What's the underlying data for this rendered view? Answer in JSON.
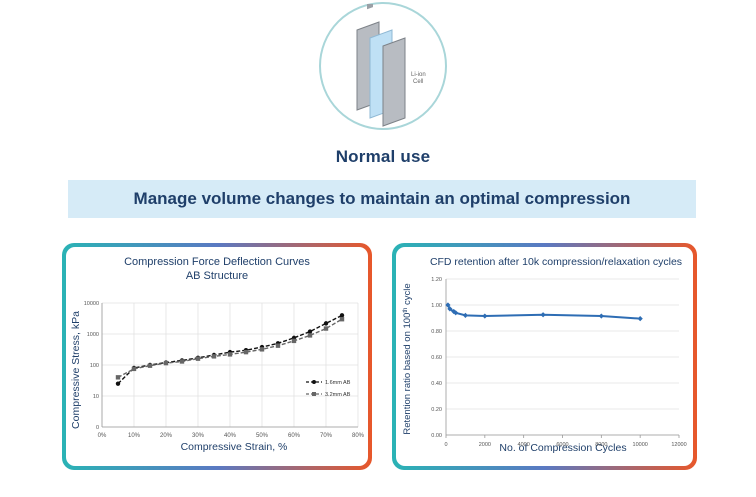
{
  "hero": {
    "cell_label_line1": "Li-ion",
    "cell_label_line2": "Cell",
    "caption": "Normal use",
    "outline_color": "#a9d6d9",
    "cell_color": "#b8bcc2",
    "separator_color": "#bfe0f5"
  },
  "banner": {
    "text": "Manage volume changes to maintain an optimal compression",
    "background": "#d6ebf7",
    "text_color": "#1f3f6a"
  },
  "panel_border_gradient": [
    "#2ab3b5",
    "#5a79c2",
    "#e8572a"
  ],
  "chart_data": [
    {
      "type": "line",
      "title": "Compression Force Deflection Curves",
      "subtitle": "AB Structure",
      "xlabel": "Compressive Strain, %",
      "ylabel": "Compressive Stress, kPa",
      "x_ticks": [
        "0%",
        "10%",
        "20%",
        "30%",
        "40%",
        "50%",
        "60%",
        "70%",
        "80%"
      ],
      "y_ticks": [
        "0",
        "10",
        "100",
        "1000",
        "10000"
      ],
      "xlim": [
        0,
        80
      ],
      "y_scale": "log",
      "grid": true,
      "legend_position": "right",
      "series": [
        {
          "name": "1.6mm AB",
          "marker": "circle",
          "line": "dashed",
          "color": "#111111",
          "x": [
            5,
            10,
            15,
            20,
            25,
            30,
            35,
            40,
            45,
            50,
            55,
            60,
            65,
            70,
            75
          ],
          "y": [
            25,
            80,
            100,
            120,
            140,
            170,
            210,
            260,
            300,
            380,
            500,
            750,
            1200,
            2200,
            4000
          ]
        },
        {
          "name": "3.2mm AB",
          "marker": "square",
          "line": "dashed",
          "color": "#666666",
          "x": [
            5,
            10,
            15,
            20,
            25,
            30,
            35,
            40,
            45,
            50,
            55,
            60,
            65,
            70,
            75
          ],
          "y": [
            40,
            75,
            95,
            115,
            130,
            160,
            190,
            220,
            260,
            320,
            420,
            600,
            900,
            1500,
            3000
          ]
        }
      ]
    },
    {
      "type": "line",
      "title": "CFD retention after 10k compression/relaxation cycles",
      "xlabel": "No. of Compression Cycles",
      "ylabel_main": "Retention ratio based on 100",
      "ylabel_sup": "th",
      "ylabel_tail": " cycle",
      "x_ticks": [
        "0",
        "2000",
        "4000",
        "6000",
        "8000",
        "10000",
        "12000"
      ],
      "y_ticks": [
        "0.00",
        "0.20",
        "0.40",
        "0.60",
        "0.80",
        "1.00",
        "1.20"
      ],
      "xlim": [
        0,
        12000
      ],
      "ylim": [
        0,
        1.2
      ],
      "grid": true,
      "series": [
        {
          "color": "#2e6db4",
          "x": [
            100,
            200,
            400,
            500,
            1000,
            2000,
            5000,
            8000,
            10000
          ],
          "y": [
            1.0,
            0.97,
            0.95,
            0.94,
            0.92,
            0.915,
            0.925,
            0.915,
            0.895
          ]
        }
      ]
    }
  ]
}
